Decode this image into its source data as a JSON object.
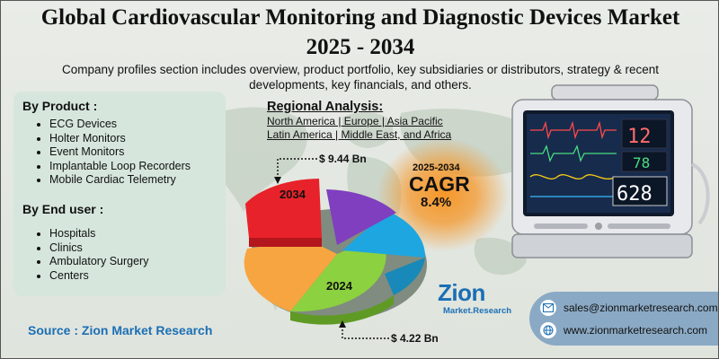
{
  "header": {
    "title_line1": "Global Cardiovascular Monitoring and Diagnostic Devices Market",
    "title_line2": "2025 - 2034",
    "subtitle_line1": "Company profiles section includes overview, product portfolio, key subsidiaries or distributors, strategy & recent",
    "subtitle_line2": "developments, key financials, and others."
  },
  "by_product": {
    "heading": "By Product :",
    "items": [
      "ECG Devices",
      "Holter Monitors",
      "Event Monitors",
      "Implantable Loop Recorders",
      "Mobile Cardiac Telemetry"
    ]
  },
  "by_end_user": {
    "heading": "By End user :",
    "items": [
      "Hospitals",
      "Clinics",
      "Ambulatory Surgery",
      "Centers"
    ]
  },
  "regional": {
    "heading": "Regional Analysis:",
    "line1": "North America | Europe | Asia Pacific",
    "line2": "Latin America | Middle East, and Africa"
  },
  "cagr": {
    "years": "2025-2034",
    "label": "CAGR",
    "value": "8.4%"
  },
  "pie": {
    "label_2034": "2034",
    "label_2024": "2024",
    "value_2034": "$ 9.44 Bn",
    "value_2024": "$ 4.22 Bn",
    "colors": {
      "red": "#e8222a",
      "purple": "#7f3fbf",
      "blue": "#1ea6e0",
      "green": "#8cd13f",
      "orange": "#f7a541"
    }
  },
  "source": "Source : Zion Market Research",
  "logo": {
    "main": "Zion",
    "sub": "Market.Research"
  },
  "contact": {
    "email": "sales@zionmarketresearch.com",
    "website": "www.zionmarketresearch.com",
    "email_icon": "email-icon",
    "web_icon": "globe-icon"
  },
  "colors": {
    "accent_blue": "#1b6fb4",
    "panel_green": "#d6e6dc",
    "cagr_orange": "#f6921e",
    "contact_bg": "#8aa9c4"
  }
}
